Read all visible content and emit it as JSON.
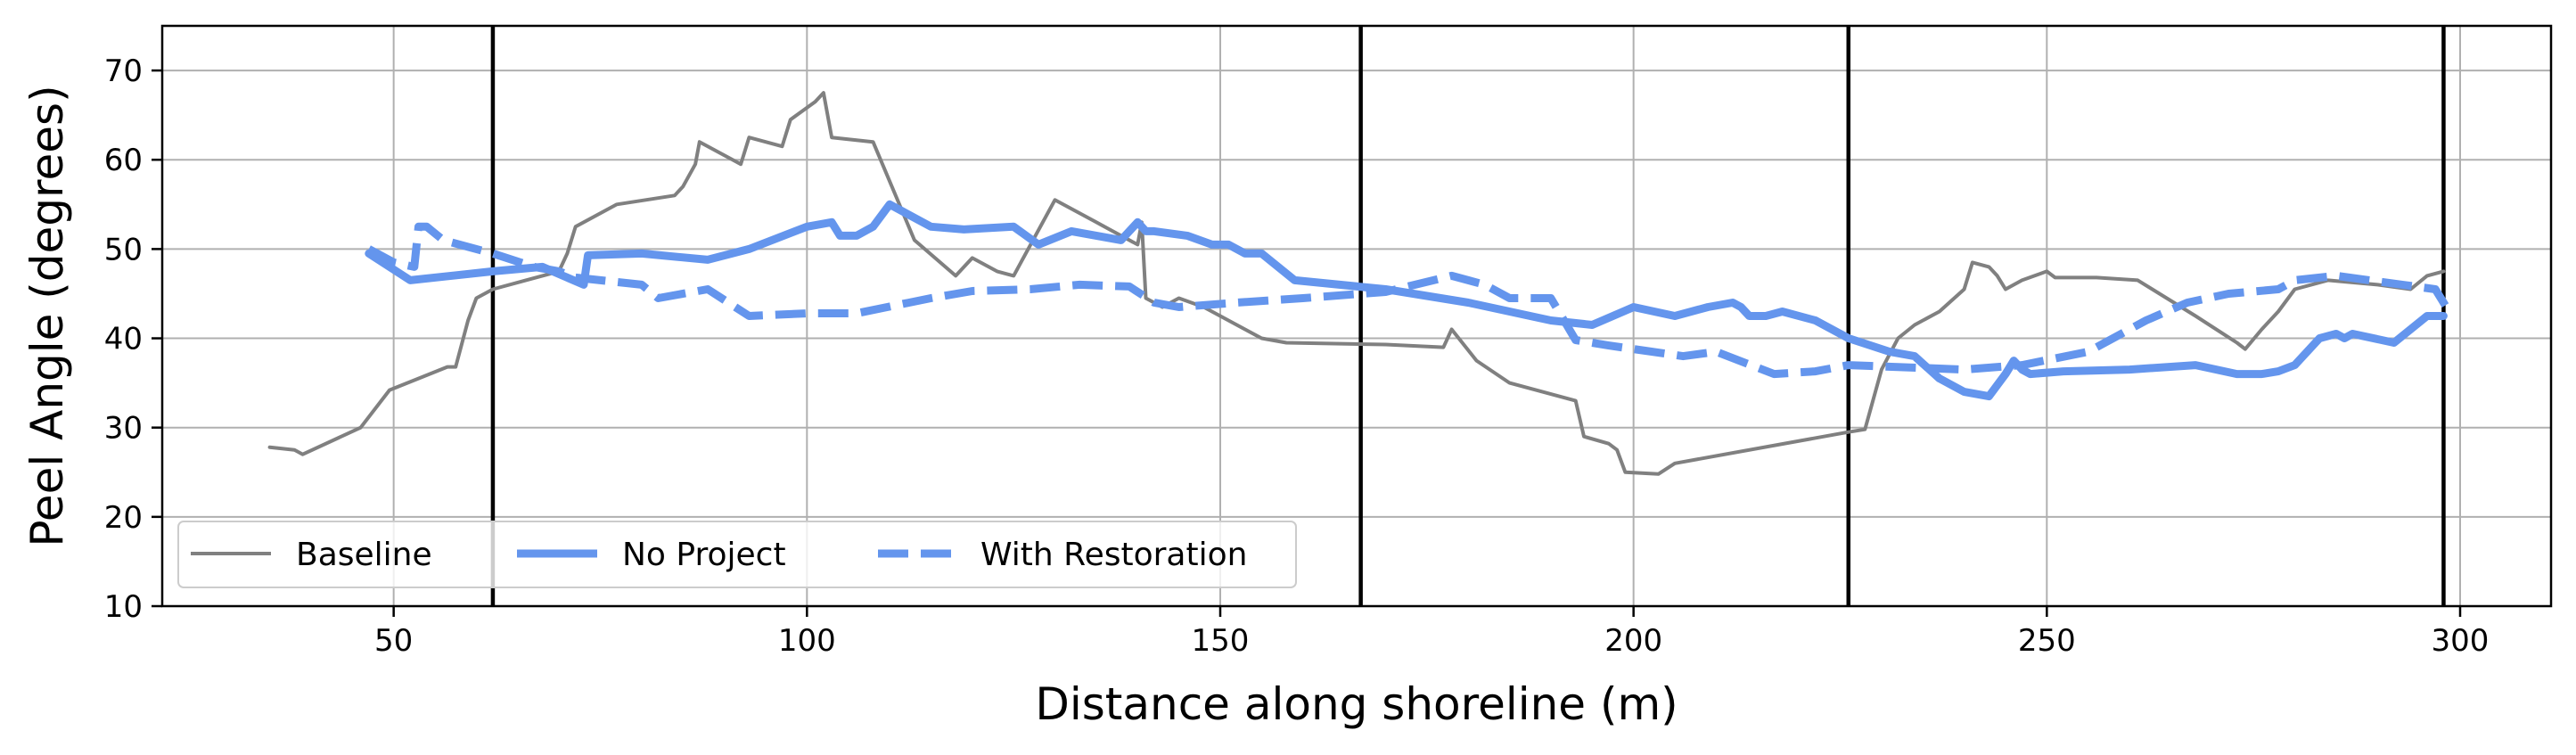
{
  "chart_data": {
    "type": "line",
    "xlabel": "Distance along shoreline (m)",
    "ylabel": "Peel Angle (degrees)",
    "xlim": [
      22,
      311
    ],
    "ylim": [
      10,
      75
    ],
    "xticks": [
      50,
      100,
      150,
      200,
      250,
      300
    ],
    "yticks": [
      10,
      20,
      30,
      40,
      50,
      60,
      70
    ],
    "grid": true,
    "legend_position": "lower-left",
    "vertical_lines_x": [
      62,
      167,
      226,
      298
    ],
    "series": [
      {
        "name": "Baseline",
        "style": "solid",
        "color": "#808080",
        "x": [
          35,
          38,
          39,
          46,
          49.5,
          53,
          56.5,
          57.5,
          59,
          60,
          62,
          66,
          70,
          71,
          72,
          77,
          84,
          85,
          86.5,
          87,
          91,
          92,
          93,
          95,
          97,
          98,
          101,
          102,
          103,
          105,
          108,
          113,
          118,
          120,
          123,
          125,
          130,
          135,
          138,
          140,
          140.5,
          141,
          143,
          145,
          148,
          150,
          153,
          155,
          158,
          170,
          177,
          178,
          181,
          185,
          193,
          194,
          197,
          198,
          199,
          203,
          205,
          226,
          228,
          230,
          232,
          234,
          237,
          240,
          241,
          243,
          244,
          245,
          247,
          250,
          251,
          254,
          256,
          261,
          268,
          273,
          274,
          276,
          278,
          280,
          284,
          290,
          294,
          296,
          298
        ],
        "y": [
          27.8,
          27.5,
          27,
          30,
          34.2,
          35.5,
          36.8,
          36.8,
          42,
          44.5,
          45.5,
          46.5,
          47.5,
          49.5,
          52.5,
          55,
          56,
          57,
          59.5,
          62,
          60,
          59.5,
          62.5,
          62,
          61.5,
          64.5,
          66.5,
          67.5,
          62.5,
          62.3,
          62,
          51,
          47,
          49,
          47.5,
          47,
          55.5,
          53,
          51.5,
          50.5,
          53,
          44.5,
          43.5,
          44.5,
          43.5,
          42.5,
          41,
          40,
          39.5,
          39.3,
          39,
          41,
          37.5,
          35,
          33,
          29,
          28.2,
          27.5,
          25,
          24.8,
          26,
          29.5,
          29.8,
          36.5,
          40,
          41.5,
          43,
          45.5,
          48.5,
          48,
          47,
          45.5,
          46.5,
          47.5,
          46.8,
          46.8,
          46.8,
          46.5,
          42.5,
          39.5,
          38.8,
          41,
          43,
          45.5,
          46.5,
          46,
          45.5,
          47,
          47.5
        ]
      },
      {
        "name": "No Project",
        "style": "solid",
        "color": "#6495ED",
        "x": [
          47,
          52,
          62,
          68,
          73,
          73.5,
          80,
          88,
          93,
          100,
          103,
          104,
          106,
          108,
          110,
          115,
          119,
          125,
          128,
          132,
          138,
          140,
          141,
          142,
          146,
          149,
          151,
          153,
          155,
          159,
          170,
          180,
          190,
          195,
          200,
          205,
          209,
          212,
          213,
          214,
          216,
          218,
          222,
          226,
          231,
          234,
          237,
          240,
          243,
          245,
          246,
          247,
          248,
          252,
          260,
          268,
          273,
          276,
          278,
          280,
          283,
          285,
          286,
          287,
          292,
          296,
          298
        ],
        "y": [
          49.5,
          46.5,
          47.5,
          48,
          46,
          49.3,
          49.5,
          48.8,
          50,
          52.5,
          53,
          51.5,
          51.5,
          52.5,
          55,
          52.5,
          52.2,
          52.5,
          50.5,
          52,
          51,
          53,
          52,
          52,
          51.5,
          50.5,
          50.5,
          49.5,
          49.5,
          46.5,
          45.5,
          44,
          42,
          41.5,
          43.5,
          42.5,
          43.5,
          44,
          43.5,
          42.5,
          42.5,
          43,
          42,
          40,
          38.5,
          38,
          35.5,
          34,
          33.5,
          36,
          37.5,
          36.5,
          36,
          36.3,
          36.5,
          37,
          36,
          36,
          36.3,
          37,
          40,
          40.5,
          40,
          40.5,
          39.5,
          42.5,
          42.5
        ]
      },
      {
        "name": "With Restoration",
        "style": "dashed",
        "color": "#6495ED",
        "x": [
          47,
          50,
          52.5,
          53,
          54,
          56,
          62,
          67,
          70,
          72,
          75,
          80,
          82,
          88,
          93,
          100,
          106,
          115,
          120,
          127,
          133,
          139,
          142,
          145,
          152,
          160,
          170,
          178,
          182,
          185,
          190,
          193,
          197,
          206,
          210,
          217,
          222,
          226,
          240,
          247,
          255,
          262,
          267,
          272,
          278,
          280,
          285,
          293,
          297,
          299
        ],
        "y": [
          50,
          48.5,
          48,
          52.5,
          52.5,
          51,
          49.5,
          48,
          47.5,
          46.8,
          46.5,
          46,
          44.5,
          45.5,
          42.5,
          42.8,
          42.8,
          44.5,
          45.3,
          45.5,
          46,
          45.8,
          44,
          43.5,
          44,
          44.5,
          45.2,
          47,
          46,
          44.5,
          44.5,
          39.8,
          39.2,
          38,
          38.5,
          36,
          36.3,
          37,
          36.5,
          37,
          38.5,
          42,
          44,
          45,
          45.5,
          46.5,
          47,
          46,
          45.5,
          42.5
        ]
      }
    ]
  }
}
